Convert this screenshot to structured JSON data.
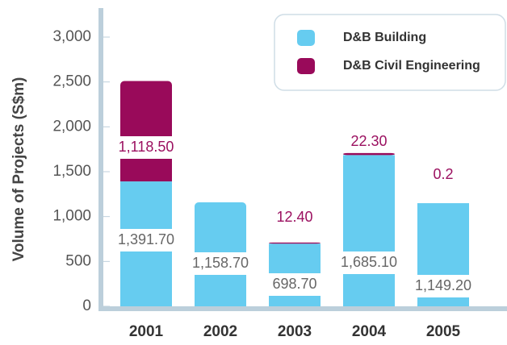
{
  "chart_data": {
    "type": "stacked_bar",
    "y_label": "Volume of Projects (S$m)",
    "categories": [
      "2001",
      "2002",
      "2003",
      "2004",
      "2005"
    ],
    "series": [
      {
        "name": "D&B Building",
        "color": "#66ccf0",
        "values": [
          1391.7,
          1158.7,
          698.7,
          1685.1,
          1149.2
        ],
        "value_labels": [
          "1,391.70",
          "1,158.70",
          "698.70",
          "1,685.10",
          "1,149.20"
        ]
      },
      {
        "name": "D&B Civil Engineering",
        "color": "#990a5a",
        "values": [
          1118.5,
          null,
          12.4,
          22.3,
          0.2
        ],
        "value_labels": [
          "1,118.50",
          null,
          "12.40",
          "22.30",
          "0.2"
        ]
      }
    ],
    "ylim": [
      0,
      3000
    ],
    "yticks": [
      0,
      500,
      {
        "value": 1000,
        "label": "1,000"
      },
      {
        "value": 1500,
        "label": "1,500"
      },
      {
        "value": 2000,
        "label": "2,000"
      },
      {
        "value": 2500,
        "label": "2,500"
      },
      {
        "value": 3000,
        "label": "3,000"
      }
    ],
    "legend": "upper right"
  }
}
